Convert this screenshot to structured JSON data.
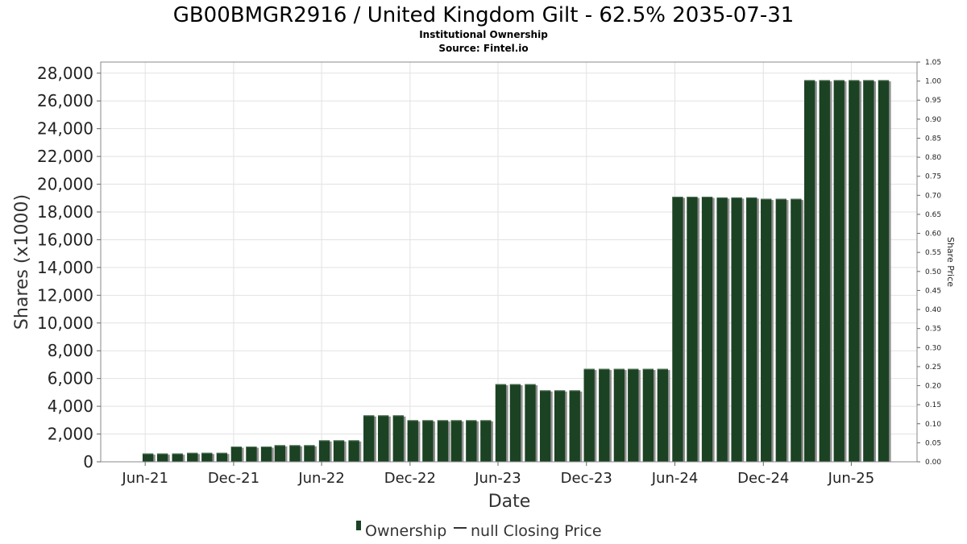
{
  "chart_data": {
    "type": "bar",
    "title": "GB00BMGR2916 / United Kingdom Gilt - 62.5% 2035-07-31",
    "subtitle_lines": [
      "Institutional Ownership",
      "Source: Fintel.io"
    ],
    "xlabel": "Date",
    "ylabel": "Shares (x1000)",
    "ylabel_right": "Share Price",
    "ylim": [
      0,
      28800
    ],
    "ylim_right": [
      0,
      1.05
    ],
    "y_ticks": [
      "0",
      "2,000",
      "4,000",
      "6,000",
      "8,000",
      "10,000",
      "12,000",
      "14,000",
      "16,000",
      "18,000",
      "20,000",
      "22,000",
      "24,000",
      "26,000",
      "28,000"
    ],
    "y_tick_values": [
      0,
      2000,
      4000,
      6000,
      8000,
      10000,
      12000,
      14000,
      16000,
      18000,
      20000,
      22000,
      24000,
      26000,
      28000
    ],
    "y_right_ticks": [
      "0.00",
      "0.05",
      "0.10",
      "0.15",
      "0.20",
      "0.25",
      "0.30",
      "0.35",
      "0.40",
      "0.45",
      "0.50",
      "0.55",
      "0.60",
      "0.65",
      "0.70",
      "0.75",
      "0.80",
      "0.85",
      "0.90",
      "0.95",
      "1.00",
      "1.05"
    ],
    "y_right_tick_values": [
      0,
      0.05,
      0.1,
      0.15,
      0.2,
      0.25,
      0.3,
      0.35,
      0.4,
      0.45,
      0.5,
      0.55,
      0.6,
      0.65,
      0.7,
      0.75,
      0.8,
      0.85,
      0.9,
      0.95,
      1.0,
      1.05
    ],
    "x_ticks": [
      {
        "label": "Jun-21",
        "date": "2021-06-01"
      },
      {
        "label": "Dec-21",
        "date": "2021-12-01"
      },
      {
        "label": "Jun-22",
        "date": "2022-06-01"
      },
      {
        "label": "Dec-22",
        "date": "2022-12-01"
      },
      {
        "label": "Jun-23",
        "date": "2023-06-01"
      },
      {
        "label": "Dec-23",
        "date": "2023-12-01"
      },
      {
        "label": "Jun-24",
        "date": "2024-06-01"
      },
      {
        "label": "Dec-24",
        "date": "2024-12-01"
      },
      {
        "label": "Jun-25",
        "date": "2025-06-01"
      }
    ],
    "x_range": [
      "2021-03-01",
      "2025-10-15"
    ],
    "grid": true,
    "legend_position": "bottom",
    "series": [
      {
        "name": "Ownership",
        "color": "#1c4224",
        "points": [
          {
            "date": "2021-06-01",
            "value": 600
          },
          {
            "date": "2021-07-01",
            "value": 600
          },
          {
            "date": "2021-08-01",
            "value": 600
          },
          {
            "date": "2021-09-01",
            "value": 650
          },
          {
            "date": "2021-10-01",
            "value": 650
          },
          {
            "date": "2021-11-01",
            "value": 650
          },
          {
            "date": "2021-12-01",
            "value": 1100
          },
          {
            "date": "2022-01-01",
            "value": 1100
          },
          {
            "date": "2022-02-01",
            "value": 1100
          },
          {
            "date": "2022-03-01",
            "value": 1200
          },
          {
            "date": "2022-04-01",
            "value": 1200
          },
          {
            "date": "2022-05-01",
            "value": 1200
          },
          {
            "date": "2022-06-01",
            "value": 1550
          },
          {
            "date": "2022-07-01",
            "value": 1550
          },
          {
            "date": "2022-08-01",
            "value": 1550
          },
          {
            "date": "2022-09-01",
            "value": 3350
          },
          {
            "date": "2022-10-01",
            "value": 3350
          },
          {
            "date": "2022-11-01",
            "value": 3350
          },
          {
            "date": "2022-12-01",
            "value": 3000
          },
          {
            "date": "2023-01-01",
            "value": 3000
          },
          {
            "date": "2023-02-01",
            "value": 3000
          },
          {
            "date": "2023-03-01",
            "value": 3000
          },
          {
            "date": "2023-04-01",
            "value": 3000
          },
          {
            "date": "2023-05-01",
            "value": 3000
          },
          {
            "date": "2023-06-01",
            "value": 5600
          },
          {
            "date": "2023-07-01",
            "value": 5600
          },
          {
            "date": "2023-08-01",
            "value": 5600
          },
          {
            "date": "2023-09-01",
            "value": 5150
          },
          {
            "date": "2023-10-01",
            "value": 5150
          },
          {
            "date": "2023-11-01",
            "value": 5150
          },
          {
            "date": "2023-12-01",
            "value": 6700
          },
          {
            "date": "2024-01-01",
            "value": 6700
          },
          {
            "date": "2024-02-01",
            "value": 6700
          },
          {
            "date": "2024-03-01",
            "value": 6700
          },
          {
            "date": "2024-04-01",
            "value": 6700
          },
          {
            "date": "2024-05-01",
            "value": 6700
          },
          {
            "date": "2024-06-01",
            "value": 19100
          },
          {
            "date": "2024-07-01",
            "value": 19100
          },
          {
            "date": "2024-08-01",
            "value": 19100
          },
          {
            "date": "2024-09-01",
            "value": 19050
          },
          {
            "date": "2024-10-01",
            "value": 19050
          },
          {
            "date": "2024-11-01",
            "value": 19050
          },
          {
            "date": "2024-12-01",
            "value": 18950
          },
          {
            "date": "2025-01-01",
            "value": 18950
          },
          {
            "date": "2025-02-01",
            "value": 18950
          },
          {
            "date": "2025-03-01",
            "value": 27500
          },
          {
            "date": "2025-04-01",
            "value": 27500
          },
          {
            "date": "2025-05-01",
            "value": 27500
          },
          {
            "date": "2025-06-01",
            "value": 27500
          },
          {
            "date": "2025-07-01",
            "value": 27500
          },
          {
            "date": "2025-08-01",
            "value": 27500
          }
        ]
      }
    ],
    "legend": [
      {
        "label": "Ownership",
        "color": "#1c4224",
        "kind": "bar"
      },
      {
        "label": "null Closing Price",
        "color": "#333333",
        "kind": "line"
      }
    ]
  }
}
